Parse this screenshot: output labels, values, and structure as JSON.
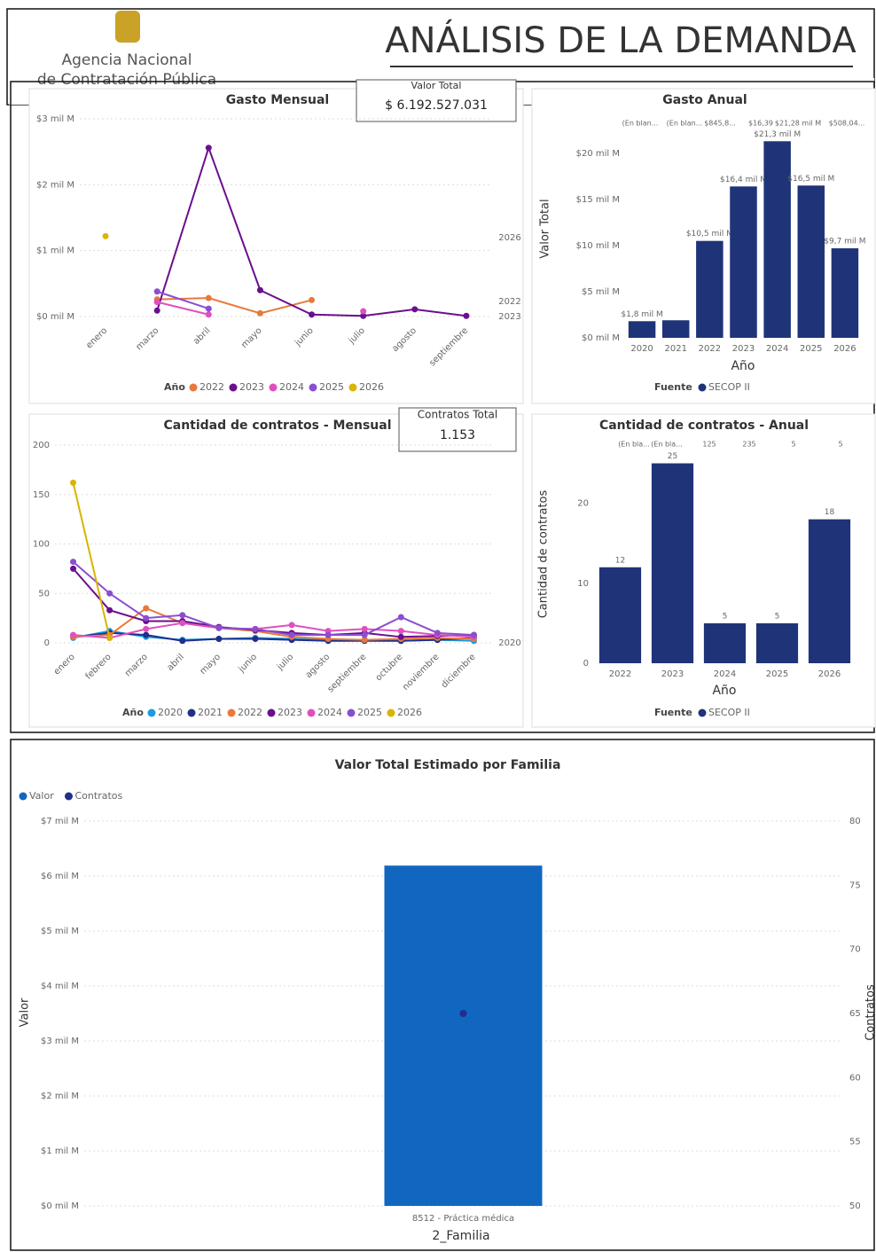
{
  "header": {
    "org": [
      "Agencia Nacional",
      "de Contratación Pública"
    ],
    "title": "ANÁLISIS DE LA DEMANDA"
  },
  "kpis": [
    {
      "label": "Valor Total",
      "value": "$ 6.192.527.031"
    },
    {
      "label": "Contratos Total",
      "value": "1.153"
    }
  ],
  "chart_data": [
    {
      "type": "line",
      "title": "Gasto Mensual",
      "categories": [
        "enero",
        "marzo",
        "abril",
        "mayo",
        "junio",
        "julio",
        "agosto",
        "septiembre"
      ],
      "legend_title": "Año",
      "series": [
        {
          "name": "2022",
          "color": "#e8793a",
          "values": [
            null,
            0.26,
            0.28,
            0.05,
            0.25,
            null,
            null,
            null
          ]
        },
        {
          "name": "2023",
          "color": "#6a0f8e",
          "values": [
            null,
            0.09,
            2.56,
            0.4,
            0.03,
            0.01,
            0.11,
            0.01
          ]
        },
        {
          "name": "2024",
          "color": "#e04fbf",
          "values": [
            null,
            0.22,
            0.03,
            null,
            null,
            0.08,
            null,
            null
          ]
        },
        {
          "name": "2025",
          "color": "#8a4fd0",
          "values": [
            null,
            0.38,
            0.12,
            null,
            null,
            null,
            null,
            null
          ]
        },
        {
          "name": "2026",
          "color": "#d9b400",
          "values": [
            1.22,
            null,
            null,
            null,
            null,
            null,
            null,
            null
          ]
        }
      ],
      "end_labels": [
        "2026",
        "2022",
        "2023"
      ],
      "ylim": [
        0,
        3
      ],
      "yticks": [
        {
          "value": 0,
          "label": "$0 mil M"
        },
        {
          "value": 1,
          "label": "$1 mil M"
        },
        {
          "value": 2,
          "label": "$2 mil M"
        },
        {
          "value": 3,
          "label": "$3 mil M"
        }
      ],
      "grid": true
    },
    {
      "type": "bar",
      "title": "Gasto Anual",
      "categories": [
        "2020",
        "2021",
        "2022",
        "2023",
        "2024",
        "2025",
        "2026"
      ],
      "legend_title": "Fuente",
      "series": [
        {
          "name": "SECOP II",
          "color": "#1f3478",
          "values": [
            1.8,
            1.9,
            10.5,
            16.4,
            21.3,
            16.5,
            9.7
          ],
          "value_labels": [
            "$1,8 mil M",
            null,
            "$10,5 mil M",
            "$16,4 mil M",
            "$21,3 mil M",
            "$16,5 mil M",
            "$9,7 mil M"
          ]
        }
      ],
      "header_labels": [
        "(En blan...",
        "(En blan...",
        "$845,8...",
        "$16,39",
        "$21,28 mil M",
        "$508,04..."
      ],
      "y_label": "Valor Total",
      "x_label": "Año",
      "ylim": [
        0,
        22
      ],
      "yticks": [
        {
          "value": 0,
          "label": "$0 mil M"
        },
        {
          "value": 5,
          "label": "$5 mil M"
        },
        {
          "value": 10,
          "label": "$10 mil M"
        },
        {
          "value": 15,
          "label": "$15 mil M"
        },
        {
          "value": 20,
          "label": "$20 mil M"
        }
      ],
      "grid": false
    },
    {
      "type": "line",
      "title": "Cantidad de contratos - Mensual",
      "categories": [
        "enero",
        "febrero",
        "marzo",
        "abril",
        "mayo",
        "junio",
        "julio",
        "agosto",
        "septiembre",
        "octubre",
        "noviembre",
        "diciembre"
      ],
      "legend_title": "Año",
      "series": [
        {
          "name": "2020",
          "color": "#1a9be0",
          "values": [
            5,
            12,
            6,
            3,
            4,
            5,
            4,
            3,
            3,
            2,
            3,
            2
          ]
        },
        {
          "name": "2021",
          "color": "#1f2f8a",
          "values": [
            6,
            10,
            8,
            2,
            4,
            4,
            3,
            2,
            2,
            2,
            3,
            5
          ]
        },
        {
          "name": "2022",
          "color": "#e8793a",
          "values": [
            6,
            8,
            35,
            20,
            15,
            12,
            6,
            4,
            3,
            4,
            5,
            4
          ]
        },
        {
          "name": "2023",
          "color": "#6a0f8e",
          "values": [
            75,
            33,
            22,
            22,
            16,
            13,
            10,
            8,
            10,
            6,
            7,
            8
          ]
        },
        {
          "name": "2024",
          "color": "#e04fbf",
          "values": [
            8,
            5,
            14,
            20,
            15,
            14,
            18,
            12,
            14,
            12,
            8,
            6
          ]
        },
        {
          "name": "2025",
          "color": "#8a4fd0",
          "values": [
            82,
            50,
            25,
            28,
            15,
            14,
            8,
            8,
            8,
            26,
            10,
            8
          ]
        },
        {
          "name": "2026",
          "color": "#d9b400",
          "values": [
            162,
            5,
            null,
            null,
            null,
            null,
            null,
            null,
            null,
            null,
            null,
            null
          ]
        }
      ],
      "end_labels": [
        "2020"
      ],
      "ylim": [
        0,
        200
      ],
      "yticks": [
        0,
        50,
        100,
        150,
        200
      ],
      "grid": true
    },
    {
      "type": "bar",
      "title": "Cantidad de contratos - Anual",
      "categories": [
        "2022",
        "2023",
        "2024",
        "2025",
        "2026"
      ],
      "legend_title": "Fuente",
      "series": [
        {
          "name": "SECOP II",
          "color": "#1f3478",
          "values": [
            12,
            25,
            5,
            5,
            18
          ]
        }
      ],
      "header_labels": [
        "(En bla...",
        "(En bla...",
        "125",
        "235",
        "5",
        "5"
      ],
      "y_label": "Cantidad de contratos",
      "x_label": "Año",
      "ylim": [
        0,
        27.5
      ],
      "yticks": [
        0,
        10,
        20
      ],
      "grid": false
    },
    {
      "type": "combo",
      "title": "Valor Total Estimado por Familia",
      "categories": [
        "8512 - Práctica médica"
      ],
      "series": [
        {
          "name": "Valor",
          "color": "#1166c0",
          "values": [
            6.19
          ]
        },
        {
          "name": "Contratos",
          "color": "#1f2f8a",
          "values": [
            65
          ],
          "axis": "y2"
        }
      ],
      "y_label": "Valor",
      "y2_label": "Contratos",
      "x_label": "2_Familia",
      "ylim": [
        0,
        7
      ],
      "yticks": [
        {
          "value": 0,
          "label": "$0 mil M"
        },
        {
          "value": 1,
          "label": "$1 mil M"
        },
        {
          "value": 2,
          "label": "$2 mil M"
        },
        {
          "value": 3,
          "label": "$3 mil M"
        },
        {
          "value": 4,
          "label": "$4 mil M"
        },
        {
          "value": 5,
          "label": "$5 mil M"
        },
        {
          "value": 6,
          "label": "$6 mil M"
        },
        {
          "value": 7,
          "label": "$7 mil M"
        }
      ],
      "y2lim": [
        50,
        80
      ],
      "y2ticks": [
        50,
        55,
        60,
        65,
        70,
        75,
        80
      ],
      "legend_corner": "top-left",
      "grid": true
    }
  ]
}
